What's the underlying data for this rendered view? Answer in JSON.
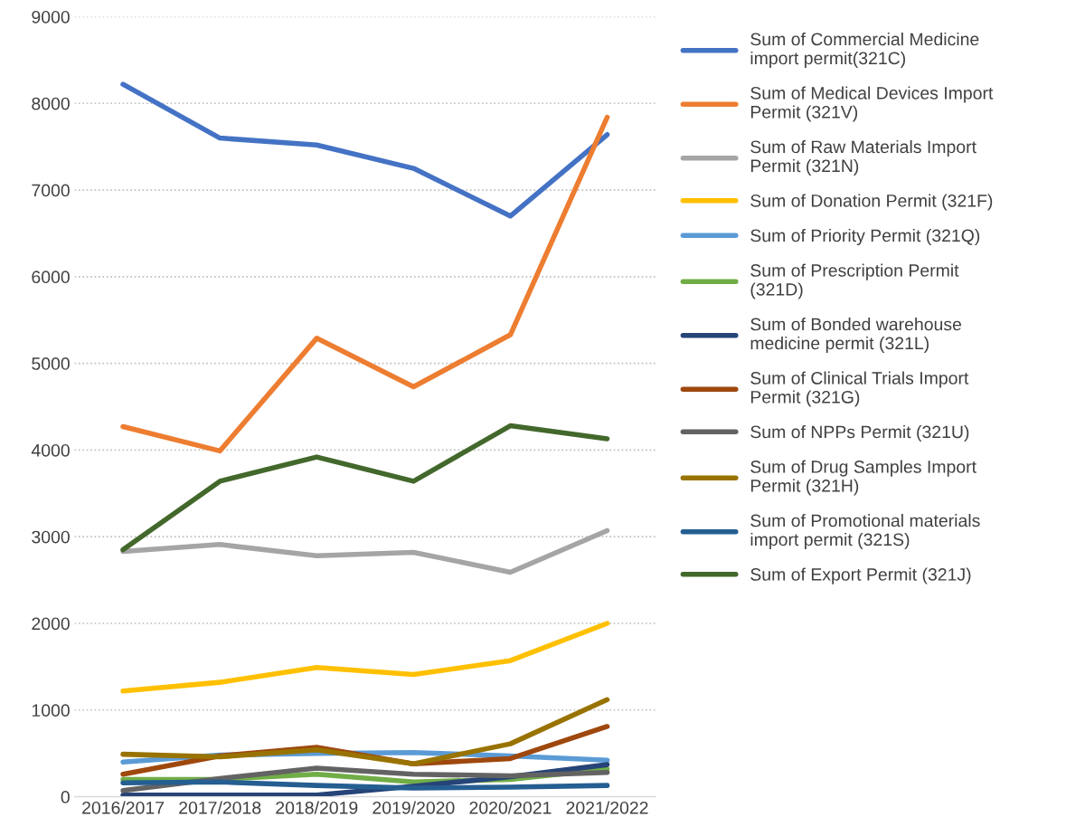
{
  "chart_data": {
    "type": "line",
    "categories": [
      "2016/2017",
      "2017/2018",
      "2018/2019",
      "2019/2020",
      "2020/2021",
      "2021/2022"
    ],
    "ylim": [
      0,
      9000
    ],
    "yticks": [
      0,
      1000,
      2000,
      3000,
      4000,
      5000,
      6000,
      7000,
      8000,
      9000
    ],
    "grid": "y",
    "legend": "right",
    "marker": "none",
    "line_style": "solid",
    "series": [
      {
        "name": "Sum of Commercial Medicine\nimport permit(321C)",
        "color": "#4472c4",
        "values": [
          8220,
          7600,
          7520,
          7250,
          6700,
          7640
        ]
      },
      {
        "name": "Sum of Medical Devices Import\nPermit (321V)",
        "color": "#ed7d31",
        "values": [
          4270,
          3990,
          5290,
          4730,
          5330,
          7840
        ]
      },
      {
        "name": "Sum of Raw Materials Import\nPermit (321N)",
        "color": "#a5a5a5",
        "values": [
          2830,
          2910,
          2780,
          2820,
          2590,
          3070
        ]
      },
      {
        "name": "Sum of Donation Permit (321F)",
        "color": "#ffc000",
        "values": [
          1220,
          1320,
          1490,
          1410,
          1570,
          2000
        ]
      },
      {
        "name": "Sum of Priority Permit (321Q)",
        "color": "#5b9bd5",
        "values": [
          400,
          480,
          500,
          510,
          470,
          420
        ]
      },
      {
        "name": "Sum of Prescription Permit\n(321D)",
        "color": "#70ad47",
        "values": [
          200,
          200,
          260,
          170,
          200,
          320
        ]
      },
      {
        "name": "Sum of Bonded warehouse\nmedicine permit (321L)",
        "color": "#264478",
        "values": [
          20,
          20,
          20,
          120,
          230,
          370
        ]
      },
      {
        "name": "Sum of Clinical Trials Import\nPermit (321G)",
        "color": "#9e480e",
        "values": [
          260,
          470,
          570,
          380,
          440,
          810
        ]
      },
      {
        "name": "Sum of NPPs Permit (321U)",
        "color": "#636363",
        "values": [
          70,
          210,
          330,
          260,
          240,
          280
        ]
      },
      {
        "name": "Sum of Drug Samples Import\nPermit (321H)",
        "color": "#997300",
        "values": [
          490,
          460,
          540,
          380,
          610,
          1120
        ]
      },
      {
        "name": "Sum of Promotional materials\nimport permit (321S)",
        "color": "#255e91",
        "values": [
          160,
          170,
          130,
          100,
          110,
          130
        ]
      },
      {
        "name": "Sum of Export Permit (321J)",
        "color": "#43682b",
        "values": [
          2850,
          3640,
          3920,
          3640,
          4280,
          4130
        ]
      }
    ]
  }
}
